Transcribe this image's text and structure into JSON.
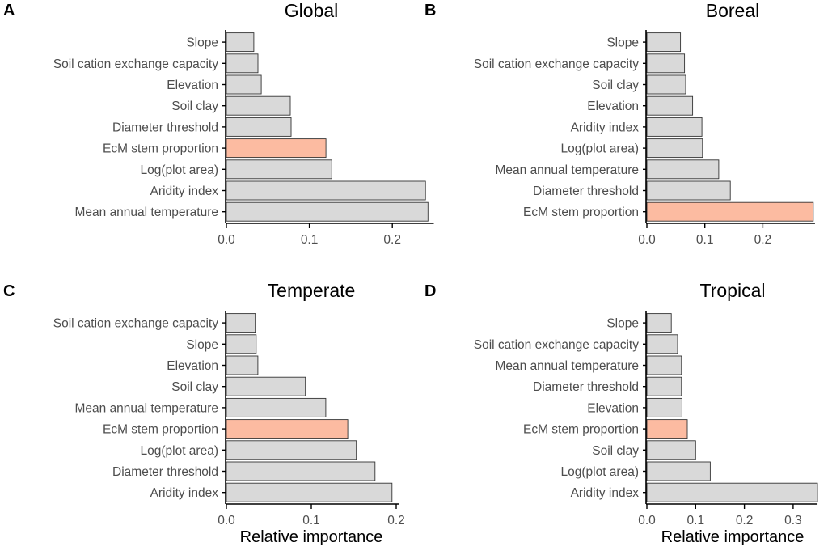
{
  "chart_data": [
    {
      "type": "bar",
      "orientation": "horizontal",
      "panel_letter": "A",
      "title": "Global",
      "xlabel": "",
      "xlim": [
        0,
        0.25
      ],
      "xticks": [
        0.0,
        0.1,
        0.2
      ],
      "xtick_labels": [
        "0.0",
        "0.1",
        "0.2"
      ],
      "highlight": "EcM stem proportion",
      "categories": [
        "Slope",
        "Soil cation exchange capacity",
        "Elevation",
        "Soil clay",
        "Diameter threshold",
        "EcM stem proportion",
        "Log(plot area)",
        "Aridity index",
        "Mean annual temperature"
      ],
      "values": [
        0.033,
        0.038,
        0.042,
        0.077,
        0.078,
        0.12,
        0.127,
        0.24,
        0.243
      ]
    },
    {
      "type": "bar",
      "orientation": "horizontal",
      "panel_letter": "B",
      "title": "Boreal",
      "xlabel": "",
      "xlim": [
        0,
        0.29
      ],
      "xticks": [
        0.0,
        0.1,
        0.2
      ],
      "xtick_labels": [
        "0.0",
        "0.1",
        "0.2"
      ],
      "highlight": "EcM stem proportion",
      "categories": [
        "Slope",
        "Soil cation exchange capacity",
        "Soil clay",
        "Elevation",
        "Aridity index",
        "Log(plot area)",
        "Mean annual temperature",
        "Diameter threshold",
        "EcM stem proportion"
      ],
      "values": [
        0.058,
        0.065,
        0.067,
        0.079,
        0.095,
        0.096,
        0.124,
        0.144,
        0.287
      ]
    },
    {
      "type": "bar",
      "orientation": "horizontal",
      "panel_letter": "C",
      "title": "Temperate",
      "xlabel": "Relative importance",
      "xlim": [
        0,
        0.2
      ],
      "xticks": [
        0.0,
        0.1,
        0.2
      ],
      "xtick_labels": [
        "0.0",
        "0.1",
        "0.2"
      ],
      "highlight": "EcM stem proportion",
      "categories": [
        "Soil cation exchange capacity",
        "Slope",
        "Elevation",
        "Soil clay",
        "Mean annual temperature",
        "EcM stem proportion",
        "Log(plot area)",
        "Diameter threshold",
        "Aridity index"
      ],
      "values": [
        0.034,
        0.035,
        0.037,
        0.093,
        0.117,
        0.143,
        0.153,
        0.175,
        0.195
      ]
    },
    {
      "type": "bar",
      "orientation": "horizontal",
      "panel_letter": "D",
      "title": "Tropical",
      "xlabel": "Relative importance",
      "xlim": [
        0,
        0.35
      ],
      "xticks": [
        0.0,
        0.1,
        0.2,
        0.3
      ],
      "xtick_labels": [
        "0.0",
        "0.1",
        "0.2",
        "0.3"
      ],
      "highlight": "EcM stem proportion",
      "categories": [
        "Slope",
        "Soil cation exchange capacity",
        "Mean annual temperature",
        "Diameter threshold",
        "Elevation",
        "EcM stem proportion",
        "Soil clay",
        "Log(plot area)",
        "Aridity index"
      ],
      "values": [
        0.05,
        0.063,
        0.071,
        0.071,
        0.072,
        0.083,
        0.1,
        0.13,
        0.35
      ]
    }
  ],
  "colors": {
    "bar_default": "#d9d9d9",
    "bar_highlight": "#fcbba1",
    "bar_stroke": "#333333",
    "axis": "#000000",
    "tick_label": "#4d4d4d",
    "title": "#000000"
  }
}
